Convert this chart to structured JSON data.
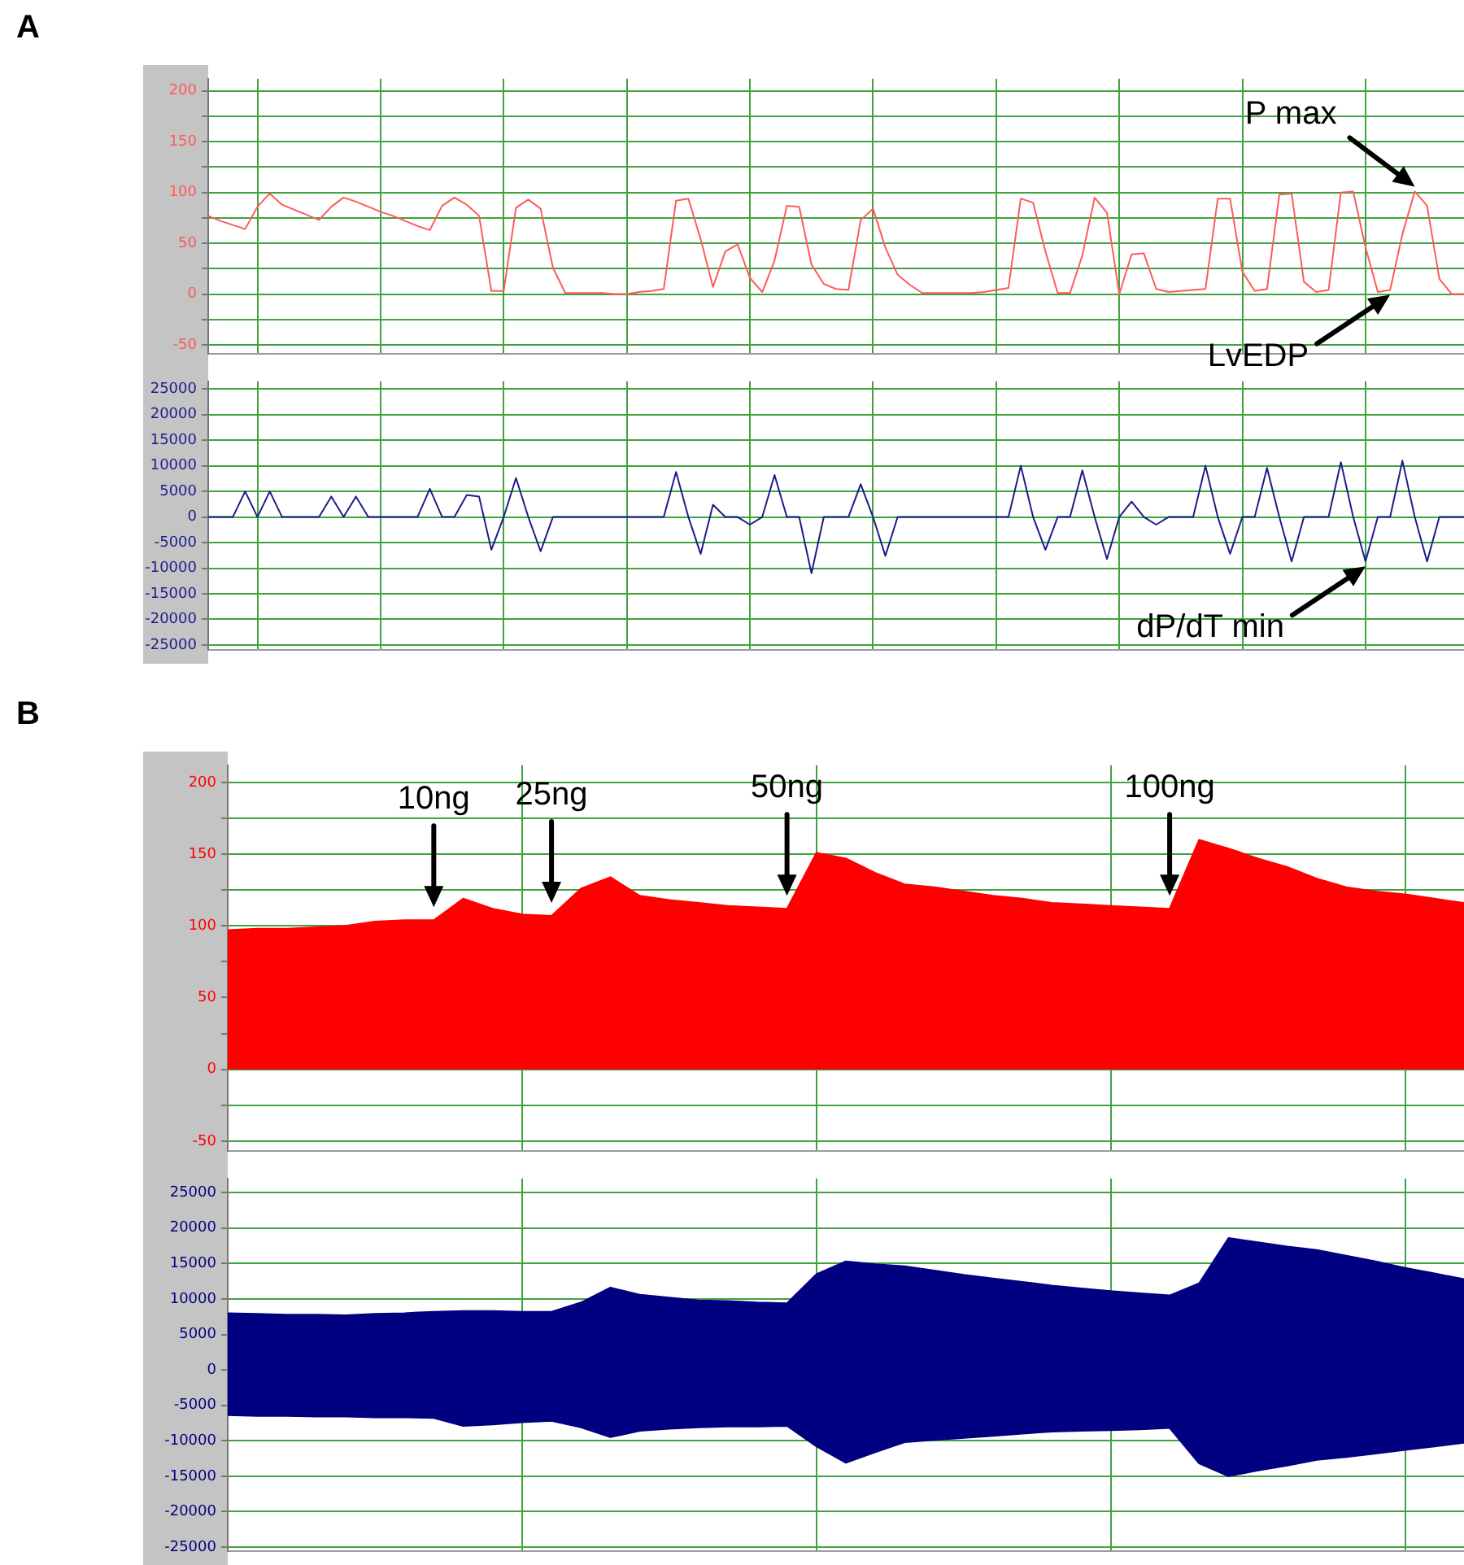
{
  "chart_data": [
    {
      "type": "line",
      "title": "A",
      "categories": [
        null,
        null,
        null,
        null,
        null,
        null,
        null,
        null,
        null,
        null,
        null,
        null,
        null,
        null,
        null,
        null,
        null,
        null,
        null,
        null,
        null,
        null,
        null,
        null,
        null,
        null,
        null,
        null,
        null,
        null,
        null,
        null,
        null,
        null,
        null,
        null,
        null,
        null,
        null,
        null,
        null,
        null,
        null,
        null,
        null,
        null,
        null,
        null,
        null,
        null,
        null,
        null,
        null,
        null,
        null,
        null,
        null,
        null,
        null,
        null,
        null,
        null,
        null,
        null,
        null,
        null,
        null,
        null,
        null,
        null,
        null,
        null,
        null,
        null,
        null,
        null,
        null,
        null,
        null,
        null,
        null,
        null,
        null,
        null,
        null,
        null,
        null,
        null,
        null,
        null,
        null,
        null,
        null,
        null,
        null,
        null,
        null,
        null,
        null,
        null,
        null,
        null,
        null
      ],
      "ylim": [
        -59,
        212
      ],
      "yticks": [
        -50,
        {
          "value": -25,
          "label": null
        },
        0,
        {
          "value": 25,
          "label": null
        },
        50,
        {
          "value": 75,
          "label": null
        },
        100,
        {
          "value": 125,
          "label": null
        },
        150,
        {
          "value": 175,
          "label": null
        },
        200
      ],
      "grid": true,
      "tick_labels": "y",
      "series": [
        {
          "color": "#ff5a5a",
          "values": [
            77,
            72,
            68,
            64,
            86,
            99,
            88,
            83,
            78,
            73,
            86,
            95,
            91,
            86,
            81,
            77,
            72,
            67,
            63,
            87,
            95,
            88,
            77,
            3,
            3,
            85,
            93,
            84,
            26,
            1,
            1,
            1,
            1,
            0,
            0,
            2,
            3,
            5,
            92,
            94,
            54,
            7,
            42,
            49,
            16,
            2,
            33,
            87,
            86,
            29,
            10,
            5,
            4,
            73,
            84,
            46,
            19,
            9,
            1,
            1,
            1,
            1,
            1,
            2,
            4,
            6,
            94,
            90,
            42,
            1,
            1,
            38,
            95,
            80,
            0,
            39,
            40,
            5,
            2,
            3,
            4,
            5,
            94,
            94,
            22,
            3,
            5,
            98,
            99,
            12,
            2,
            4,
            100,
            101,
            46,
            2,
            4,
            59,
            101,
            87,
            15,
            0,
            0
          ]
        }
      ],
      "annotations": [
        "P max",
        "LvEDP"
      ]
    },
    {
      "type": "line",
      "categories": [
        null,
        null,
        null,
        null,
        null,
        null,
        null,
        null,
        null,
        null,
        null,
        null,
        null,
        null,
        null,
        null,
        null,
        null,
        null,
        null,
        null,
        null,
        null,
        null,
        null,
        null,
        null,
        null,
        null,
        null,
        null,
        null,
        null,
        null,
        null,
        null,
        null,
        null,
        null,
        null,
        null,
        null,
        null,
        null,
        null,
        null,
        null,
        null,
        null,
        null,
        null,
        null,
        null,
        null,
        null,
        null,
        null,
        null,
        null,
        null,
        null,
        null,
        null,
        null,
        null,
        null,
        null,
        null,
        null,
        null,
        null,
        null,
        null,
        null,
        null,
        null,
        null,
        null,
        null,
        null,
        null,
        null,
        null,
        null,
        null,
        null,
        null,
        null,
        null,
        null,
        null,
        null,
        null,
        null,
        null,
        null,
        null,
        null,
        null,
        null,
        null,
        null,
        null
      ],
      "ylim": [
        -26000,
        26500
      ],
      "yticks": [
        -25000,
        -20000,
        -15000,
        -10000,
        -5000,
        0,
        5000,
        10000,
        15000,
        20000,
        25000
      ],
      "grid": true,
      "tick_labels": "y",
      "series": [
        {
          "color": "#1c1c8c",
          "values": [
            0,
            0,
            0,
            5000,
            0,
            5000,
            0,
            0,
            0,
            0,
            4000,
            0,
            4000,
            0,
            0,
            0,
            0,
            0,
            5500,
            0,
            0,
            4300,
            4000,
            -6400,
            0,
            7600,
            0,
            -6700,
            0,
            0,
            0,
            0,
            0,
            0,
            0,
            0,
            0,
            0,
            8800,
            0,
            -7200,
            2400,
            0,
            0,
            -1500,
            0,
            8200,
            0,
            0,
            -11000,
            0,
            0,
            0,
            6400,
            0,
            -7600,
            0,
            0,
            0,
            0,
            0,
            0,
            0,
            0,
            0,
            0,
            10000,
            0,
            -6400,
            0,
            0,
            9100,
            0,
            -8200,
            0,
            3000,
            0,
            -1500,
            0,
            0,
            0,
            10000,
            0,
            -7200,
            0,
            0,
            9600,
            0,
            -8700,
            0,
            0,
            0,
            10700,
            0,
            -8700,
            0,
            0,
            11000,
            0,
            -8700,
            0,
            0,
            0
          ]
        }
      ],
      "annotations": [
        "dP/dT min"
      ]
    },
    {
      "type": "area",
      "title": "B",
      "categories": [
        null,
        null,
        null,
        null,
        null,
        null,
        null,
        null,
        null,
        null,
        null,
        null,
        null,
        null,
        null,
        null,
        null,
        null,
        null,
        null,
        null,
        null,
        null,
        null,
        null,
        null,
        null,
        null,
        null,
        null,
        null,
        null,
        null,
        null,
        null,
        null,
        null,
        null,
        null,
        null,
        null,
        null,
        null
      ],
      "ylim": [
        -57,
        212
      ],
      "yticks": [
        -50,
        {
          "value": -25,
          "label": null
        },
        0,
        {
          "value": 25,
          "label": null
        },
        50,
        {
          "value": 75,
          "label": null
        },
        100,
        {
          "value": 125,
          "label": null
        },
        150,
        {
          "value": 175,
          "label": null
        },
        200
      ],
      "grid": true,
      "tick_labels": "y",
      "series": [
        {
          "color": "#ff0000",
          "values": [
            97,
            98,
            98,
            99,
            100,
            103,
            104,
            104,
            119,
            112,
            108,
            107,
            126,
            134,
            121,
            118,
            116,
            114,
            113,
            112,
            151,
            147,
            137,
            129,
            127,
            124,
            121,
            119,
            116,
            115,
            114,
            113,
            112,
            160,
            154,
            147,
            141,
            133,
            127,
            124,
            122,
            119,
            116
          ]
        }
      ],
      "annotations": [
        "10ng",
        "25ng",
        "50ng",
        "100ng"
      ]
    },
    {
      "type": "area",
      "categories": [
        null,
        null,
        null,
        null,
        null,
        null,
        null,
        null,
        null,
        null,
        null,
        null,
        null,
        null,
        null,
        null,
        null,
        null,
        null,
        null,
        null,
        null,
        null,
        null,
        null,
        null,
        null,
        null,
        null,
        null,
        null,
        null,
        null,
        null,
        null,
        null,
        null,
        null,
        null,
        null,
        null,
        null,
        null
      ],
      "ylim": [
        -25600,
        27000
      ],
      "yticks": [
        -25000,
        -20000,
        -15000,
        -10000,
        -5000,
        0,
        5000,
        10000,
        15000,
        20000,
        25000
      ],
      "grid": true,
      "tick_labels": "y",
      "series": [
        {
          "color": "#000080",
          "values": [
            8000,
            7900,
            7800,
            7800,
            7700,
            7900,
            8000,
            8200,
            8300,
            8300,
            8200,
            8200,
            9500,
            11600,
            10600,
            10200,
            9800,
            9700,
            9500,
            9400,
            13500,
            15300,
            14900,
            14600,
            14000,
            13400,
            12900,
            12400,
            11900,
            11500,
            11100,
            10800,
            10500,
            12200,
            18600,
            18000,
            17400,
            16900,
            16100,
            15300,
            14400,
            13600,
            12800
          ]
        },
        {
          "color": "#000080",
          "values": [
            -6400,
            -6500,
            -6500,
            -6600,
            -6600,
            -6700,
            -6700,
            -6800,
            -7900,
            -7700,
            -7400,
            -7200,
            -8100,
            -9500,
            -8600,
            -8300,
            -8100,
            -8000,
            -8000,
            -7900,
            -10800,
            -13100,
            -11600,
            -10200,
            -9900,
            -9600,
            -9300,
            -9000,
            -8700,
            -8600,
            -8500,
            -8400,
            -8200,
            -13200,
            -15000,
            -14200,
            -13500,
            -12700,
            -12300,
            -11800,
            -11300,
            -10800,
            -10300
          ]
        }
      ]
    }
  ]
}
